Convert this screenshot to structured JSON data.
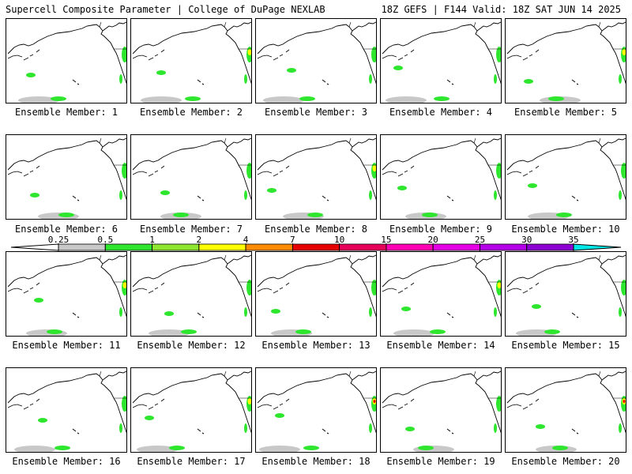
{
  "header": {
    "left": "Supercell Composite Parameter | College of DuPage NEXLAB",
    "right": "18Z GEFS | F144 Valid: 18Z SAT JUN 14 2025"
  },
  "members": [
    {
      "label": "Ensemble Member: 1"
    },
    {
      "label": "Ensemble Member: 2"
    },
    {
      "label": "Ensemble Member: 3"
    },
    {
      "label": "Ensemble Member: 4"
    },
    {
      "label": "Ensemble Member: 5"
    },
    {
      "label": "Ensemble Member: 6"
    },
    {
      "label": "Ensemble Member: 7"
    },
    {
      "label": "Ensemble Member: 8"
    },
    {
      "label": "Ensemble Member: 9"
    },
    {
      "label": "Ensemble Member: 10"
    },
    {
      "label": "Ensemble Member: 11"
    },
    {
      "label": "Ensemble Member: 12"
    },
    {
      "label": "Ensemble Member: 13"
    },
    {
      "label": "Ensemble Member: 14"
    },
    {
      "label": "Ensemble Member: 15"
    },
    {
      "label": "Ensemble Member: 16"
    },
    {
      "label": "Ensemble Member: 17"
    },
    {
      "label": "Ensemble Member: 18"
    },
    {
      "label": "Ensemble Member: 19"
    },
    {
      "label": "Ensemble Member: 20"
    }
  ],
  "colorbar": {
    "ticks": [
      "0.25",
      "0.5",
      "1",
      "2",
      "4",
      "7",
      "10",
      "15",
      "20",
      "25",
      "30",
      "35"
    ],
    "colors": [
      "#c8c8c8",
      "#2ee62e",
      "#8ee62e",
      "#ffff00",
      "#ff8c00",
      "#e60000",
      "#e6005a",
      "#ff00b4",
      "#e600e6",
      "#b400e6",
      "#8c00d2",
      "#b45ae6",
      "#00e6e6"
    ]
  }
}
